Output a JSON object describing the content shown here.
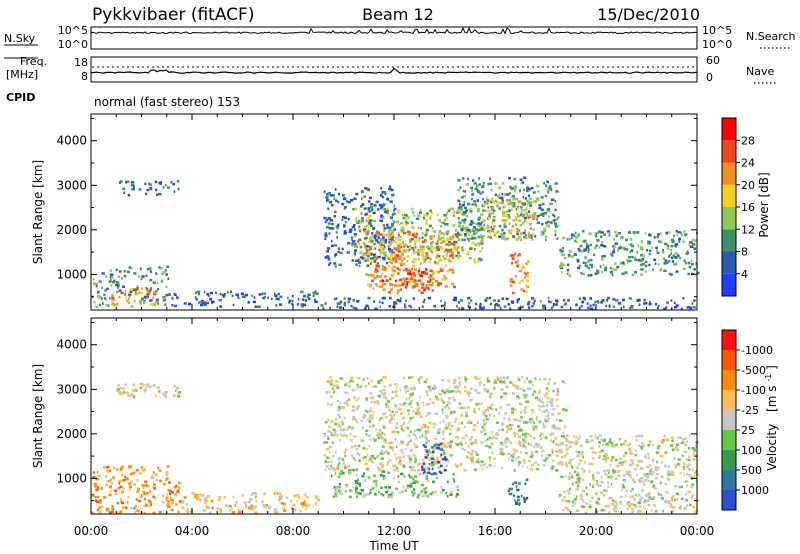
{
  "header": {
    "station": "Pykkvibaer (fitACF)",
    "beam": "Beam 12",
    "date": "15/Dec/2010"
  },
  "sky_panel": {
    "left_label": "N.Sky",
    "right_label": "N.Search",
    "left_ticks": [
      "10^5",
      "10^0"
    ],
    "right_ticks": [
      "10^5",
      "10^0"
    ]
  },
  "freq_panel": {
    "left_label_1": "Freq.",
    "left_label_2": "[MHz]",
    "right_label": "Nave",
    "left_ticks": [
      "18",
      "8"
    ],
    "right_ticks": [
      "60",
      "0"
    ]
  },
  "cpid": {
    "label": "CPID",
    "program": "normal (fast stereo) 153"
  },
  "chart_data": [
    {
      "type": "heatmap",
      "name": "power",
      "xlabel": "Time UT",
      "ylabel": "Slant Range [km]",
      "x_ticks": [
        "00:00",
        "04:00",
        "08:00",
        "12:00",
        "16:00",
        "20:00",
        "00:00"
      ],
      "xlim_hours": [
        0,
        24
      ],
      "ylim": [
        200,
        4600
      ],
      "y_ticks": [
        1000,
        2000,
        3000,
        4000
      ],
      "colorbar": {
        "label": "Power [dB]",
        "ticks": [
          "4",
          "8",
          "12",
          "16",
          "20",
          "24",
          "28"
        ],
        "colors": [
          "#1f3fff",
          "#2a5ab8",
          "#3f8f6a",
          "#8fc85a",
          "#f0d020",
          "#f09020",
          "#f04820",
          "#ff0000"
        ]
      },
      "regions": [
        {
          "t0": 0.0,
          "t1": 3.2,
          "r0": 300,
          "r1": 1200,
          "level": 2
        },
        {
          "t0": 0.8,
          "t1": 2.6,
          "r0": 350,
          "r1": 750,
          "level": 5
        },
        {
          "t0": 1.0,
          "t1": 3.5,
          "r0": 2800,
          "r1": 3150,
          "level": 1
        },
        {
          "t0": 3.2,
          "t1": 9.0,
          "r0": 300,
          "r1": 650,
          "level": 1
        },
        {
          "t0": 9.2,
          "t1": 12.0,
          "r0": 1200,
          "r1": 3000,
          "level": 1
        },
        {
          "t0": 10.3,
          "t1": 15.5,
          "r0": 1300,
          "r1": 2500,
          "level": 3
        },
        {
          "t0": 10.8,
          "t1": 14.5,
          "r0": 700,
          "r1": 2000,
          "level": 5
        },
        {
          "t0": 11.5,
          "t1": 13.5,
          "r0": 600,
          "r1": 1200,
          "level": 6
        },
        {
          "t0": 14.5,
          "t1": 18.5,
          "r0": 1800,
          "r1": 3200,
          "level": 2
        },
        {
          "t0": 15.5,
          "t1": 17.5,
          "r0": 1800,
          "r1": 2700,
          "level": 4
        },
        {
          "t0": 16.5,
          "t1": 17.3,
          "r0": 600,
          "r1": 1500,
          "level": 5
        },
        {
          "t0": 18.5,
          "t1": 24.0,
          "r0": 1000,
          "r1": 2000,
          "level": 2
        },
        {
          "t0": 9.0,
          "t1": 24.0,
          "r0": 250,
          "r1": 500,
          "level": 1
        }
      ]
    },
    {
      "type": "heatmap",
      "name": "velocity",
      "xlabel": "Time UT",
      "ylabel": "Slant Range [km]",
      "x_ticks": [
        "00:00",
        "04:00",
        "08:00",
        "12:00",
        "16:00",
        "20:00",
        "00:00"
      ],
      "xlim_hours": [
        0,
        24
      ],
      "ylim": [
        200,
        4600
      ],
      "y_ticks": [
        1000,
        2000,
        3000,
        4000
      ],
      "colorbar": {
        "label_main": "Velocity",
        "label_unit": "[m s",
        "label_exp": "-1",
        "label_close": "]",
        "ticks": [
          "1000",
          "500",
          "100",
          "25",
          "-25",
          "-100",
          "-500",
          "-1000"
        ],
        "colors": [
          "#2f4fd0",
          "#2f78a0",
          "#3a9a4a",
          "#66c84a",
          "#c8c8c0",
          "#ffbb55",
          "#ff8c00",
          "#ff5500",
          "#ff1010"
        ]
      },
      "regions": [
        {
          "t0": 0.0,
          "t1": 3.5,
          "r0": 250,
          "r1": 1300,
          "level": 6
        },
        {
          "t0": 1.0,
          "t1": 3.5,
          "r0": 2850,
          "r1": 3150,
          "level": 4
        },
        {
          "t0": 3.5,
          "t1": 9.0,
          "r0": 250,
          "r1": 700,
          "level": 5
        },
        {
          "t0": 9.2,
          "t1": 18.8,
          "r0": 1200,
          "r1": 3300,
          "level": 4
        },
        {
          "t0": 9.5,
          "t1": 14.5,
          "r0": 600,
          "r1": 1200,
          "level": 3
        },
        {
          "t0": 13.0,
          "t1": 14.0,
          "r0": 1100,
          "r1": 1800,
          "level": 0
        },
        {
          "t0": 16.5,
          "t1": 17.3,
          "r0": 400,
          "r1": 1000,
          "level": 1
        },
        {
          "t0": 18.5,
          "t1": 24.0,
          "r0": 250,
          "r1": 2000,
          "level": 4
        }
      ]
    }
  ]
}
